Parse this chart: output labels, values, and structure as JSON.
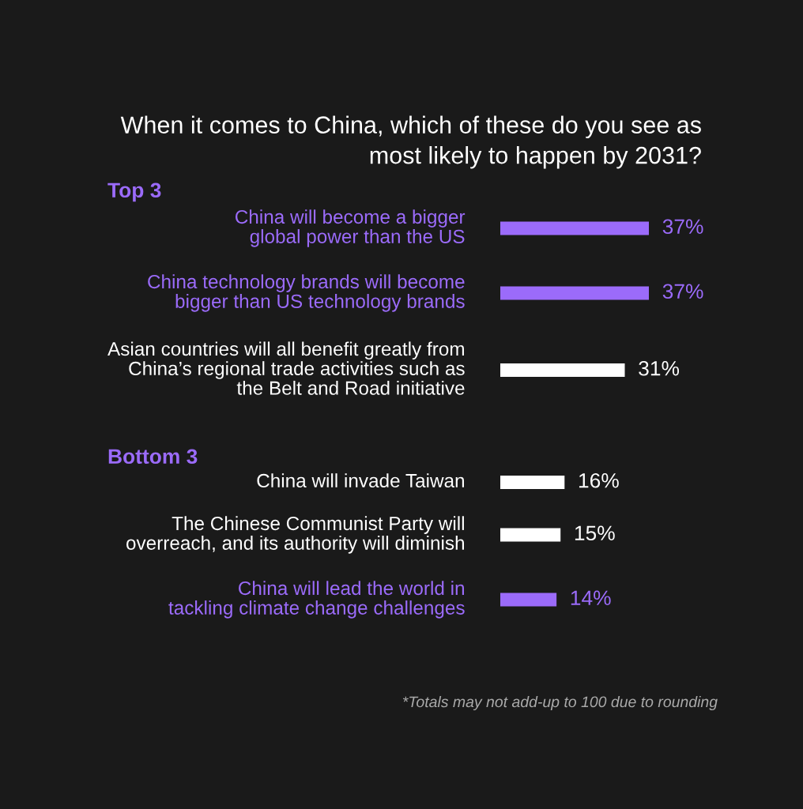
{
  "chart_data": {
    "type": "bar",
    "orientation": "horizontal",
    "title": "When it comes to China, which of these do you see as\nmost likely to happen by 2031?",
    "categories": [
      "China will become a bigger\nglobal power than the US",
      "China technology brands will become\nbigger than US technology brands",
      "Asian countries will all benefit greatly from\nChina’s regional trade activities such as\nthe Belt and Road initiative",
      "China will invade Taiwan",
      "The Chinese Communist Party will\noverreach, and its authority will diminish",
      "China will lead the world in\ntackling climate change challenges"
    ],
    "values": [
      37,
      37,
      31,
      16,
      15,
      14
    ],
    "colors": [
      "#9b6bfa",
      "#9b6bfa",
      "#ffffff",
      "#ffffff",
      "#ffffff",
      "#9b6bfa"
    ],
    "value_labels": [
      "37%",
      "37%",
      "31%",
      "16%",
      "15%",
      "14%"
    ],
    "annotations": [
      "Top 3",
      "Bottom 3",
      "*Totals may not add-up to 100 due to rounding"
    ]
  }
}
